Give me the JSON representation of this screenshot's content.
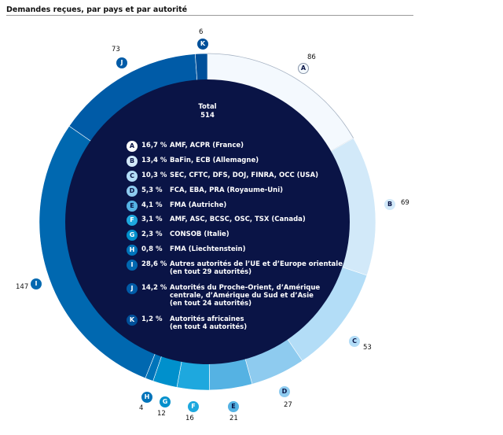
{
  "title": "Demandes reçues, par pays et par autorité",
  "chart_data": {
    "type": "pie",
    "donut": true,
    "total_label": "Total",
    "total": "514",
    "slices": [
      {
        "key": "A",
        "value": 86,
        "pct": "16,7 %",
        "label": "AMF, ACPR (France)",
        "color": "#f4f9fe",
        "text": "#0a1446"
      },
      {
        "key": "B",
        "value": 69,
        "pct": "13,4 %",
        "label": "BaFin, ECB (Allemagne)",
        "color": "#d2e9f9",
        "text": "#0a1446"
      },
      {
        "key": "C",
        "value": 53,
        "pct": "10,3 %",
        "label": "SEC, CFTC, DFS, DOJ, FINRA, OCC (USA)",
        "color": "#b3ddf7",
        "text": "#0a1446"
      },
      {
        "key": "D",
        "value": 27,
        "pct": "5,3 %",
        "label": "FCA, EBA, PRA (Royaume-Uni)",
        "color": "#8ecbef",
        "text": "#0a1446"
      },
      {
        "key": "E",
        "value": 21,
        "pct": "4,1 %",
        "label": "FMA (Autriche)",
        "color": "#55b2e3",
        "text": "#0a1446"
      },
      {
        "key": "F",
        "value": 16,
        "pct": "3,1 %",
        "label": "AMF, ASC, BCSC, OSC, TSX (Canada)",
        "color": "#1ea8de",
        "text": "#ffffff"
      },
      {
        "key": "G",
        "value": 12,
        "pct": "2,3 %",
        "label": "CONSOB (Italie)",
        "color": "#0090cc",
        "text": "#ffffff"
      },
      {
        "key": "H",
        "value": 4,
        "pct": "0,8 %",
        "label": "FMA (Liechtenstein)",
        "color": "#0074ba",
        "text": "#ffffff"
      },
      {
        "key": "I",
        "value": 147,
        "pct": "28,6 %",
        "label": "Autres autorités de l’UE et d’Europe orientale\n(en tout 29 autorités)",
        "color": "#0068b0",
        "text": "#ffffff"
      },
      {
        "key": "J",
        "value": 73,
        "pct": "14,2 %",
        "label": "Autorités du Proche-Orient, d’Amérique\ncentrale, d’Amérique du Sud et d’Asie\n(en tout 24 autorités)",
        "color": "#005ba7",
        "text": "#ffffff"
      },
      {
        "key": "K",
        "value": 6,
        "pct": "1,2 %",
        "label": "Autorités africaines\n(en tout 4 autorités)",
        "color": "#00509a",
        "text": "#ffffff"
      }
    ],
    "center_color": "#0a1446"
  }
}
